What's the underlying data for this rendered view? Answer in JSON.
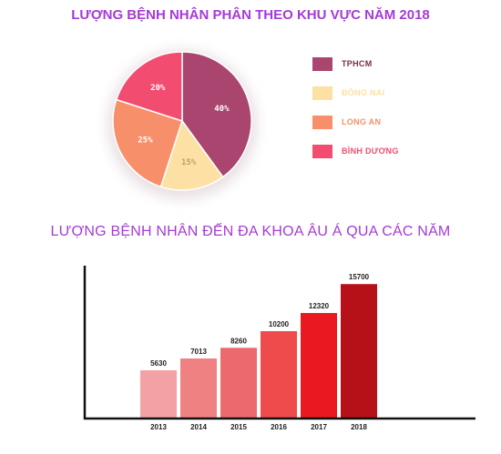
{
  "chart_data": [
    {
      "type": "pie",
      "title": "LƯỢNG BỆNH NHÂN PHÂN THEO KHU VỰC NĂM 2018",
      "slices": [
        {
          "label": "TPHCM",
          "value": 40,
          "display": "40%",
          "color": "#a9456f"
        },
        {
          "label": "ĐỒNG NAI",
          "value": 15,
          "display": "15%",
          "color": "#fde0a3"
        },
        {
          "label": "LONG AN",
          "value": 25,
          "display": "25%",
          "color": "#f7906a"
        },
        {
          "label": "BÌNH DƯƠNG",
          "value": 20,
          "display": "20%",
          "color": "#f24d71"
        }
      ],
      "label_color": "#7a2d4f",
      "legend_position": "right"
    },
    {
      "type": "bar",
      "title": "LƯỢNG BỆNH NHÂN ĐẾN ĐA KHOA ÂU Á QUA CÁC NĂM",
      "categories": [
        "2013",
        "2014",
        "2015",
        "2016",
        "2017",
        "2018"
      ],
      "values": [
        5630,
        7013,
        8260,
        10200,
        12320,
        15700
      ],
      "colors": [
        "#f2a2a4",
        "#f08183",
        "#ec6a6d",
        "#ef4a4c",
        "#e8191f",
        "#b61118"
      ],
      "ylim": [
        0,
        17000
      ],
      "grid": false,
      "xlabel": "",
      "ylabel": ""
    }
  ]
}
